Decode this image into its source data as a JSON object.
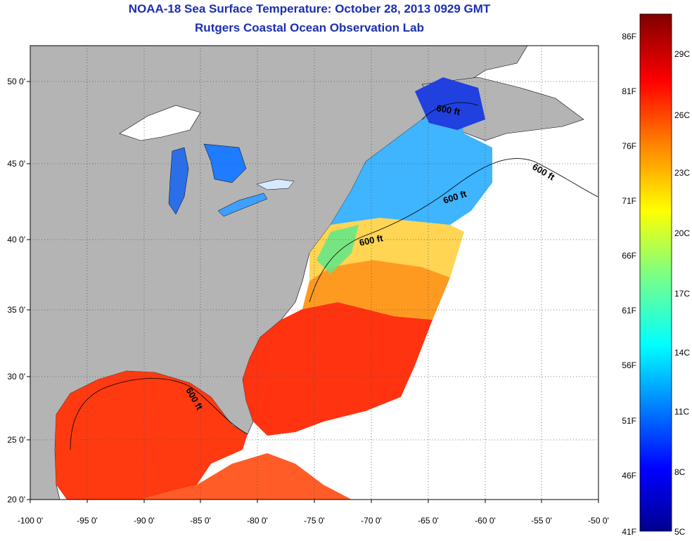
{
  "title": "NOAA-18 Sea Surface Temperature:  October 28, 2013 0929 GMT",
  "subtitle": "Rutgers Coastal Ocean Observation Lab",
  "axes": {
    "lon_labels": [
      "-100 0'",
      "-95 0'",
      "-90 0'",
      "-85 0'",
      "-80 0'",
      "-75 0'",
      "-70 0'",
      "-65 0'",
      "-60 0'",
      "-55 0'",
      "-50 0'"
    ],
    "lat_labels": [
      "50 0'",
      "45 0'",
      "40 0'",
      "35 0'",
      "30 0'",
      "25 0'",
      "20 0'"
    ]
  },
  "isobath_labels": [
    "600 ft",
    "600 ft",
    "600 ft",
    "600 ft",
    "600 ft"
  ],
  "colorbar": {
    "fahrenheit_labels": [
      "86F",
      "81F",
      "76F",
      "71F",
      "66F",
      "61F",
      "56F",
      "51F",
      "46F",
      "41F"
    ],
    "celsius_labels": [
      "29C",
      "26C",
      "23C",
      "20C",
      "17C",
      "14C",
      "11C",
      "8C",
      "5C"
    ],
    "colors": [
      "#00008f",
      "#0000ff",
      "#0080ff",
      "#00ffff",
      "#80ff80",
      "#ffff00",
      "#ff8000",
      "#ff0000",
      "#800000"
    ]
  },
  "palette": {
    "land": "#b4b4b4",
    "no_data": "#ffffff",
    "title": "#1b2fb0"
  }
}
